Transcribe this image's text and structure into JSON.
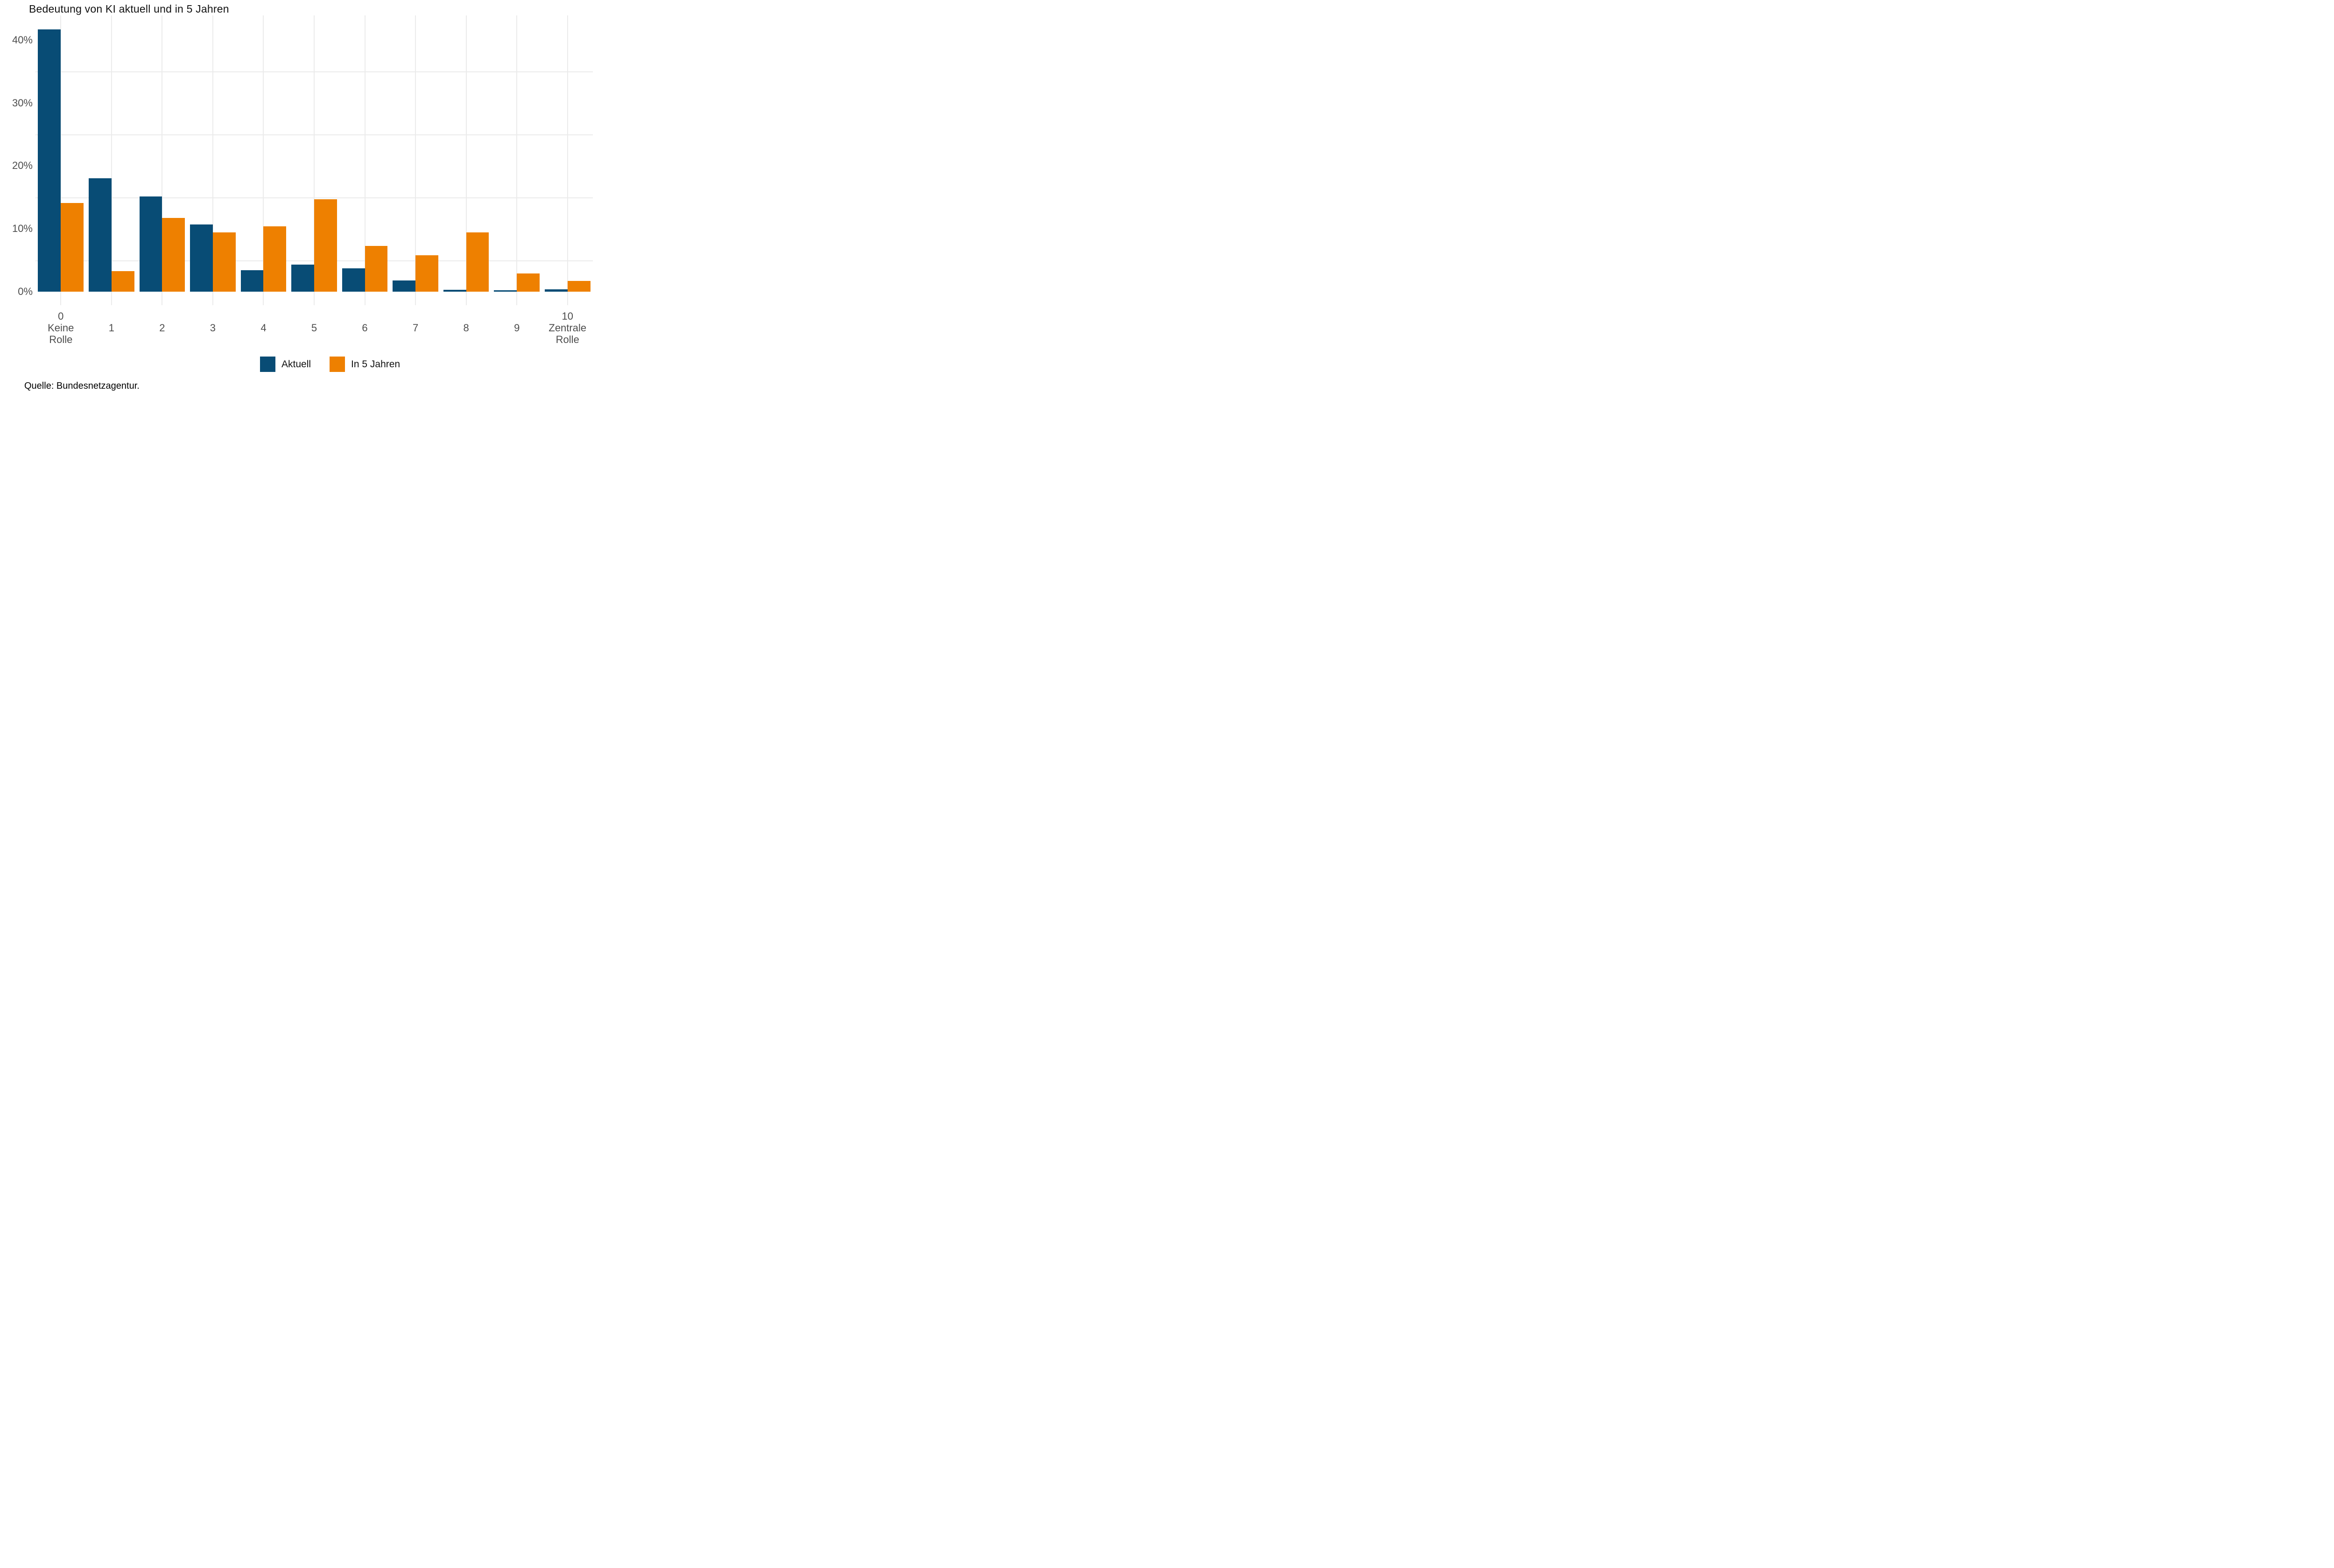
{
  "title": "Bedeutung von KI aktuell und in 5 Jahren",
  "source": "Quelle: Bundesnetzagentur.",
  "colors": {
    "aktuell": "#084c75",
    "in5jahren": "#ee8000",
    "grid": "#ebebeb",
    "axis_text": "#4d4d4d",
    "title_text": "#111111"
  },
  "legend": {
    "items": [
      {
        "label": "Aktuell",
        "color": "#084c75"
      },
      {
        "label": "In 5 Jahren",
        "color": "#ee8000"
      }
    ]
  },
  "y_axis": {
    "ticks": [
      {
        "label": "0%",
        "value": 0
      },
      {
        "label": "10%",
        "value": 10
      },
      {
        "label": "20%",
        "value": 20
      },
      {
        "label": "30%",
        "value": 30
      },
      {
        "label": "40%",
        "value": 40
      }
    ],
    "minor_gridlines": [
      5,
      15,
      25,
      35
    ]
  },
  "chart_data": {
    "type": "bar",
    "title": "Bedeutung von KI aktuell und in 5 Jahren",
    "categories": [
      "0",
      "1",
      "2",
      "3",
      "4",
      "5",
      "6",
      "7",
      "8",
      "9",
      "10"
    ],
    "category_label_lines": [
      [
        "0",
        "Keine",
        "Rolle"
      ],
      [
        "1"
      ],
      [
        "2"
      ],
      [
        "3"
      ],
      [
        "4"
      ],
      [
        "5"
      ],
      [
        "6"
      ],
      [
        "7"
      ],
      [
        "8"
      ],
      [
        "9"
      ],
      [
        "10",
        "Zentrale",
        "Rolle"
      ]
    ],
    "series": [
      {
        "name": "Aktuell",
        "color": "#084c75",
        "values": [
          41.7,
          18.0,
          15.1,
          10.7,
          3.4,
          4.3,
          3.7,
          1.8,
          0.3,
          0.2,
          0.4
        ]
      },
      {
        "name": "In 5 Jahren",
        "color": "#ee8000",
        "values": [
          14.1,
          3.3,
          11.7,
          9.4,
          10.4,
          14.7,
          7.3,
          5.8,
          9.4,
          2.9,
          1.7
        ]
      }
    ],
    "xlabel": "",
    "ylabel": "",
    "ylim": [
      0,
      44
    ],
    "unit": "%",
    "grid": "vertical-major + horizontal-minor",
    "legend_position": "bottom-center"
  }
}
